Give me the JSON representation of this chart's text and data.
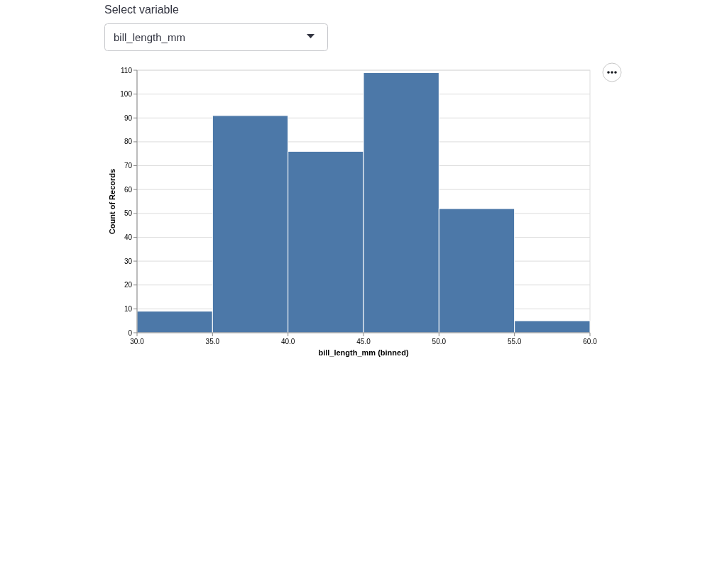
{
  "chart_data": {
    "type": "histogram",
    "annotations": [
      "Select variable",
      "bill_length_mm"
    ],
    "xlabel": "bill_length_mm (binned)",
    "ylabel": "Count of Records",
    "bins": [
      30,
      35,
      40,
      45,
      50,
      55,
      60
    ],
    "values": [
      9,
      91,
      76,
      109,
      52,
      5
    ],
    "color": "#4c78a8",
    "xlim": [
      30,
      60
    ],
    "xticks": [
      {
        "value": 30,
        "label": "30.0"
      },
      {
        "value": 35,
        "label": "35.0"
      },
      {
        "value": 40,
        "label": "40.0"
      },
      {
        "value": 45,
        "label": "45.0"
      },
      {
        "value": 50,
        "label": "50.0"
      },
      {
        "value": 55,
        "label": "55.0"
      },
      {
        "value": 60,
        "label": "60.0"
      }
    ],
    "ylim": [
      0,
      110
    ],
    "yticks": [
      0,
      10,
      20,
      30,
      40,
      50,
      60,
      70,
      80,
      90,
      100,
      110
    ],
    "grid": "y"
  }
}
